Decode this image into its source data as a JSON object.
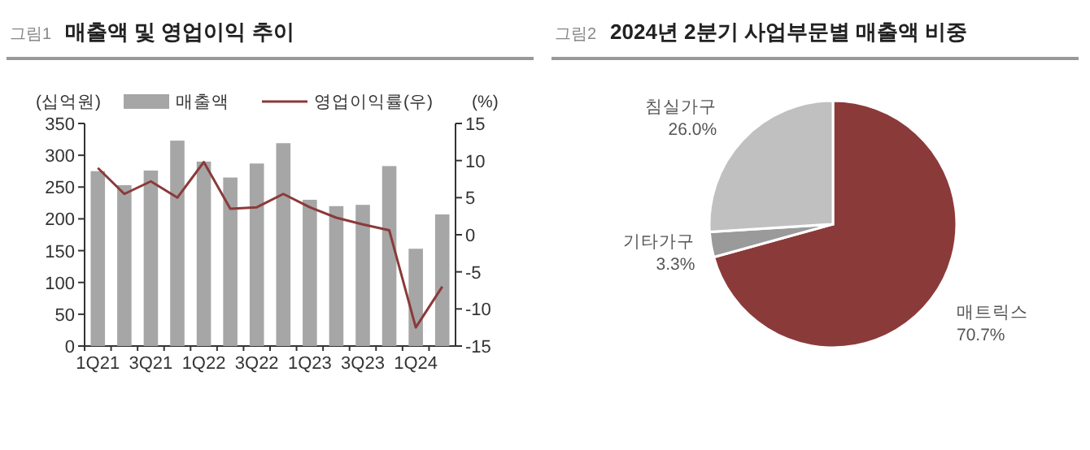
{
  "chart_data": [
    {
      "type": "bar",
      "title": "매출액 및 영업이익 추이",
      "annotations": [
        "그림1"
      ],
      "ylabel": "(십억원)",
      "y2label": "(%)",
      "categories": [
        "1Q21",
        null,
        "3Q21",
        null,
        "1Q22",
        null,
        "3Q22",
        null,
        "1Q23",
        null,
        "3Q23",
        null,
        "1Q24",
        null
      ],
      "series": [
        {
          "name": "매출액",
          "type": "bar",
          "color": "#a6a6a6",
          "values": [
            275,
            253,
            276,
            323,
            290,
            265,
            287,
            319,
            230,
            220,
            222,
            283,
            153,
            207
          ]
        },
        {
          "name": "영업이익률(우)",
          "type": "line",
          "axis": "y2",
          "color": "#8b3a3a",
          "values": [
            9.0,
            5.5,
            7.2,
            5.0,
            9.8,
            3.5,
            3.7,
            5.5,
            3.7,
            2.3,
            1.4,
            0.6,
            -12.5,
            -7.0
          ]
        }
      ],
      "ylim": [
        0,
        350
      ],
      "yticks": [
        0,
        50,
        100,
        150,
        200,
        250,
        300,
        350
      ],
      "y2lim": [
        -15,
        15
      ],
      "y2ticks": [
        {
          "value": -15,
          "label": "-15"
        },
        {
          "value": -10,
          "label": "-10"
        },
        {
          "value": -5,
          "label": "-5"
        },
        0,
        5,
        10,
        15
      ],
      "legend": "top",
      "grid": false
    },
    {
      "type": "pie",
      "title": "2024년 2분기 사업부문별 매출액 비중",
      "annotations": [
        "그림2"
      ],
      "categories": [
        "매트릭스",
        "기타가구",
        "침실가구"
      ],
      "values": [
        70.7,
        3.3,
        26.0
      ],
      "colors": [
        "#8b3a3a",
        "#9a9a9a",
        "#c0c0c0"
      ],
      "value_labels": [
        "70.7%",
        "3.3%",
        "26.0%"
      ]
    }
  ]
}
